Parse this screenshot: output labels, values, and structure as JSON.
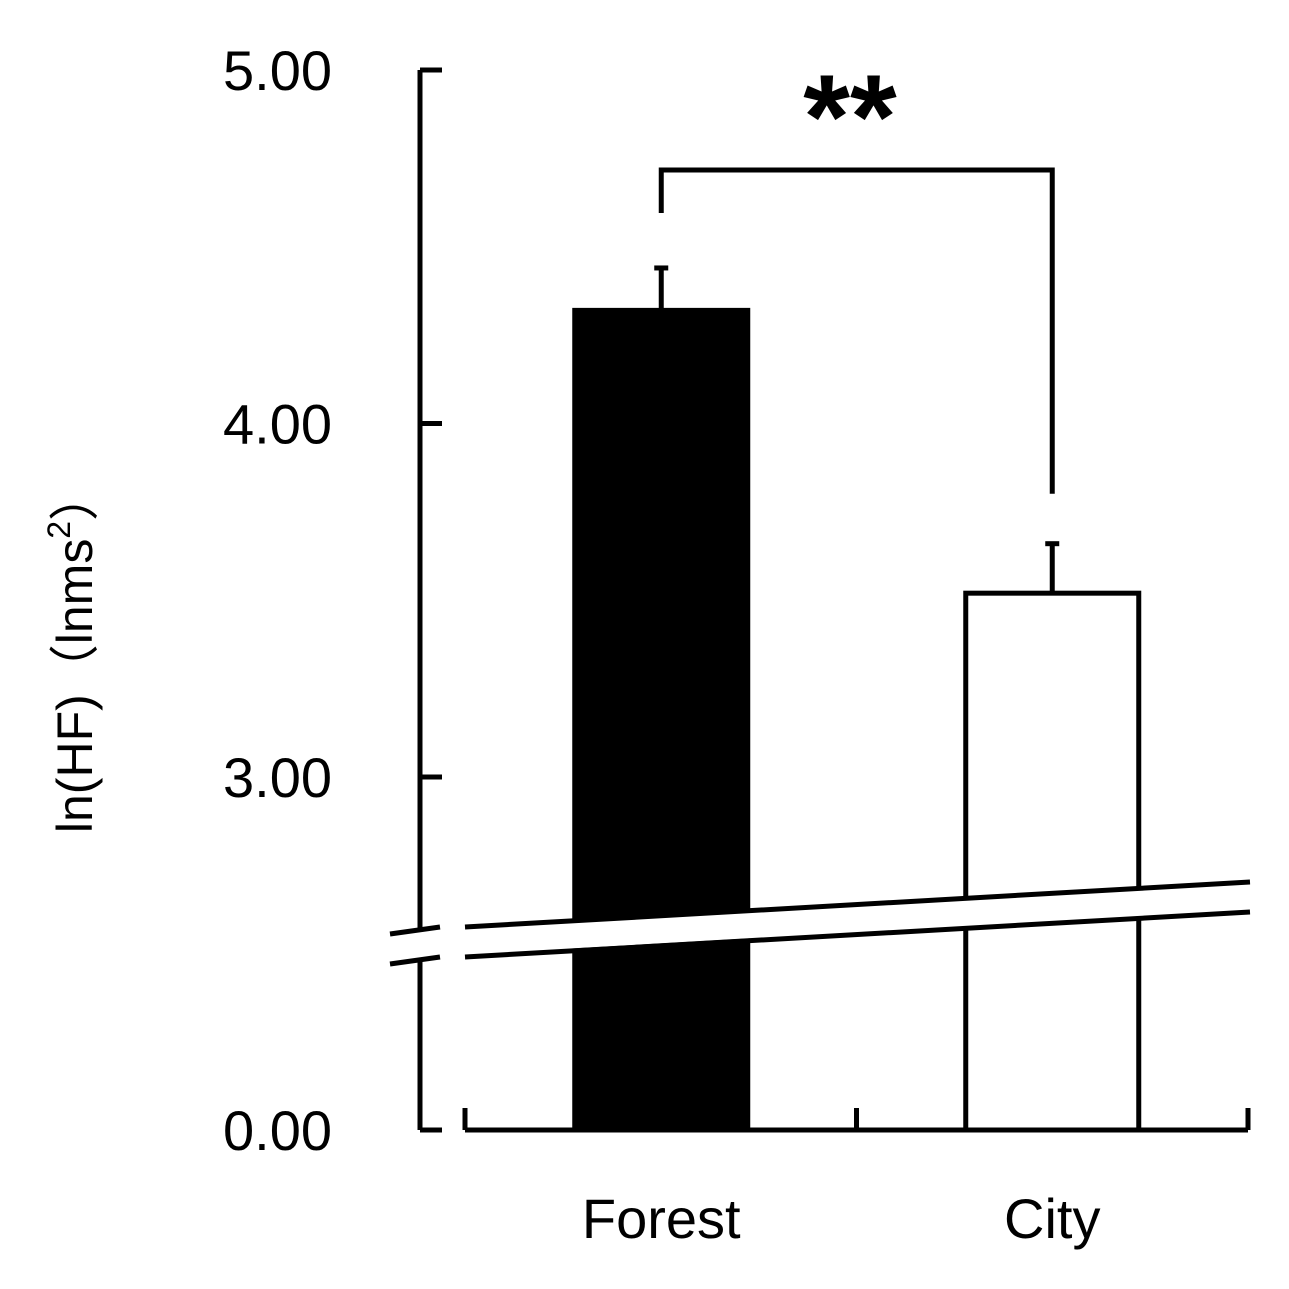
{
  "chart_data": {
    "type": "bar",
    "title": "",
    "xlabel": "",
    "ylabel": "ln(HF)（lnms²）",
    "ylabel_parts": {
      "main": "ln(HF)（lnms",
      "superscript": "2",
      "close": "）"
    },
    "categories": [
      "Forest",
      "City"
    ],
    "values": [
      4.32,
      3.52
    ],
    "errors": [
      0.12,
      0.14
    ],
    "bar_colors": [
      "#000000",
      "#ffffff"
    ],
    "bar_edge_color": "#000000",
    "ylim": [
      0,
      5
    ],
    "axis_break": [
      0,
      2.6
    ],
    "yticks": [
      {
        "value": 0,
        "label": "0.00"
      },
      {
        "value": 3,
        "label": "3.00"
      },
      {
        "value": 4,
        "label": "4.00"
      },
      {
        "value": 5,
        "label": "5.00"
      }
    ],
    "significance": {
      "between": [
        "Forest",
        "City"
      ],
      "label": "**"
    },
    "grid": false,
    "legend": "none"
  }
}
